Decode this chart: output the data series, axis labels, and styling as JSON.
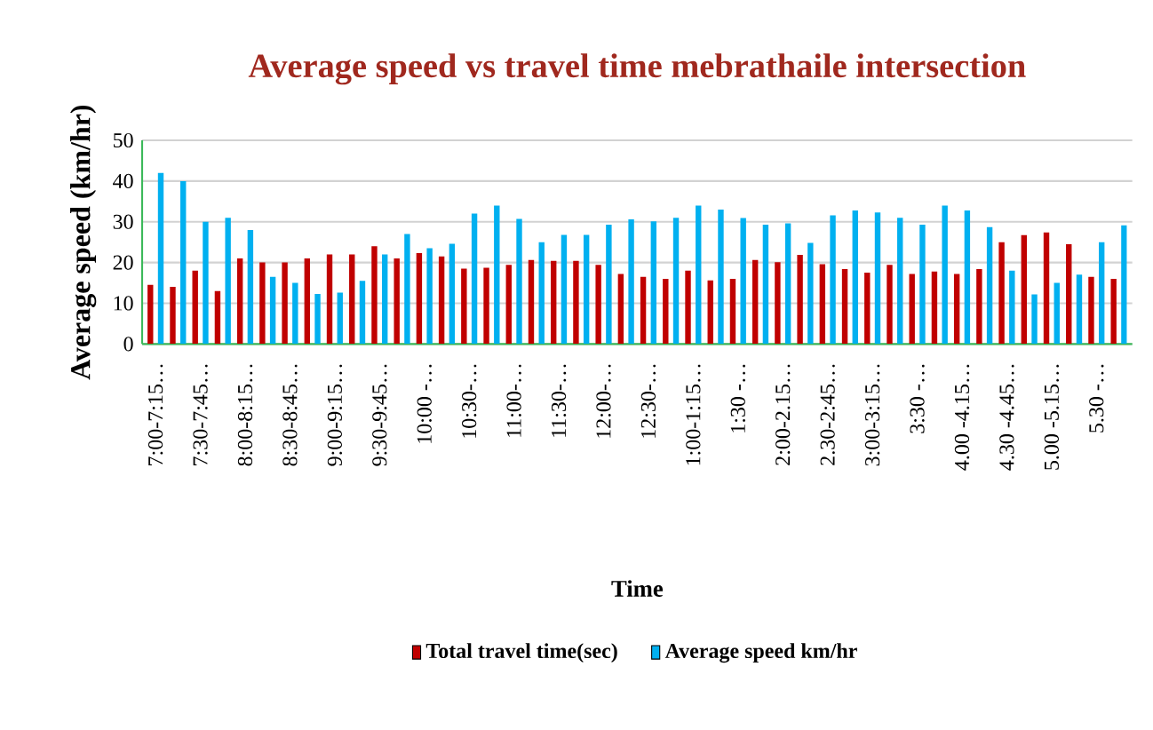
{
  "chart_data": {
    "type": "bar",
    "title": "Average speed vs travel time mebrathaile intersection",
    "xlabel": "Time",
    "ylabel": "Average speed (km/hr)",
    "categories": [
      "7:00-7:15…",
      null,
      "7:30-7:45…",
      null,
      "8:00-8:15…",
      null,
      "8:30-8:45…",
      null,
      "9:00-9:15…",
      null,
      "9:30-9:45…",
      null,
      "10:00 -…",
      null,
      "10:30-…",
      null,
      "11:00-…",
      null,
      "11:30-…",
      null,
      "12:00-…",
      null,
      "12:30-…",
      null,
      "1:00-1:15…",
      null,
      "1:30 -…",
      null,
      "2:00-2.15…",
      null,
      "2.30-2:45…",
      null,
      "3:00-3:15…",
      null,
      "3:30 -…",
      null,
      "4.00 -4.15…",
      null,
      "4.30 -4.45…",
      null,
      "5.00 -5.15…",
      null,
      "5.30 -…",
      null
    ],
    "series": [
      {
        "name": "Total travel time(sec)",
        "color": "#c00000",
        "values": [
          14.5,
          14,
          18,
          13,
          21,
          20,
          20,
          21,
          22,
          22,
          24,
          21,
          22.3,
          21.5,
          18.5,
          18.7,
          19.4,
          20.6,
          20.4,
          20.4,
          19.4,
          17.2,
          16.5,
          16,
          18,
          15.6,
          16,
          20.6,
          20.1,
          21.9,
          19.6,
          18.4,
          17.5,
          19.4,
          17.2,
          17.8,
          17.2,
          18.4,
          25,
          26.7,
          27.4,
          24.5,
          16.5,
          16
        ]
      },
      {
        "name": "Average speed km/hr",
        "color": "#00b0f0",
        "values": [
          42,
          40,
          30,
          31,
          28,
          16.5,
          15,
          12.3,
          12.6,
          15.5,
          22,
          27,
          23.5,
          24.6,
          32,
          34,
          30.7,
          25,
          26.8,
          26.8,
          29.3,
          30.6,
          30.1,
          31,
          34,
          33,
          30.9,
          29.3,
          29.6,
          24.8,
          31.6,
          32.8,
          32.3,
          31,
          29.3,
          34,
          32.8,
          28.7,
          18,
          12.2,
          15,
          17,
          25,
          29.1
        ]
      }
    ],
    "ylim": [
      0,
      50
    ],
    "yticks": [
      0,
      10,
      20,
      30,
      40,
      50
    ],
    "grid": "y",
    "legend": "bottom"
  }
}
